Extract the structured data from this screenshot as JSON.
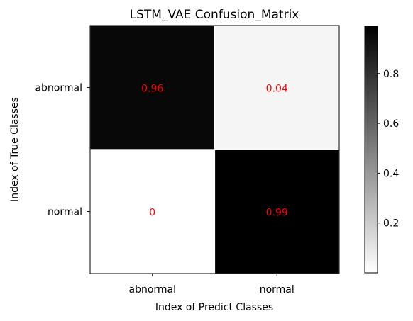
{
  "chart_data": {
    "type": "heatmap",
    "title": "LSTM_VAE Confusion_Matrix",
    "xlabel": "Index of Predict Classes",
    "ylabel": "Index of True Classes",
    "x_categories": [
      "abnormal",
      "normal"
    ],
    "y_categories": [
      "abnormal",
      "normal"
    ],
    "values": [
      [
        0.96,
        0.04
      ],
      [
        0,
        0.99
      ]
    ],
    "cell_labels": [
      [
        "0.96",
        "0.04"
      ],
      [
        "0",
        "0.99"
      ]
    ],
    "colormap": "Greys",
    "annotation_color": "#ff0000",
    "colorbar": {
      "range": [
        0,
        0.99
      ],
      "ticks": [
        0.2,
        0.4,
        0.6,
        0.8
      ],
      "tick_labels": [
        "0.2",
        "0.4",
        "0.6",
        "0.8"
      ]
    }
  }
}
